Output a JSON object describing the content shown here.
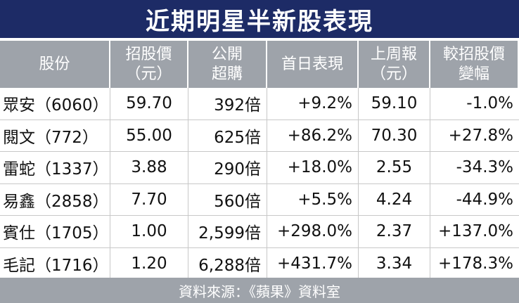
{
  "header": {
    "title": "近期明星半新股表現"
  },
  "table": {
    "columns": [
      "股份",
      "招股價\n（元）",
      "公開\n超購",
      "首日表現",
      "上周報\n（元）",
      "較招股價\n變幅"
    ],
    "rows": [
      [
        "眾安（6060）",
        "59.70",
        "392倍",
        "+9.2%",
        "59.10",
        "-1.0%"
      ],
      [
        "閱文（772）",
        "55.00",
        "625倍",
        "+86.2%",
        "70.30",
        "+27.8%"
      ],
      [
        "雷蛇（1337）",
        "3.88",
        "290倍",
        "+18.0%",
        "2.55",
        "-34.3%"
      ],
      [
        "易鑫（2858）",
        "7.70",
        "560倍",
        "+5.5%",
        "4.24",
        "-44.9%"
      ],
      [
        "賓仕（1705）",
        "1.00",
        "2,599倍",
        "+298.0%",
        "2.37",
        "+137.0%"
      ],
      [
        "毛記（1716）",
        "1.20",
        "6,288倍",
        "+431.7%",
        "3.34",
        "+178.3%"
      ]
    ]
  },
  "footer": {
    "source": "資料來源：《蘋果》資料室"
  }
}
